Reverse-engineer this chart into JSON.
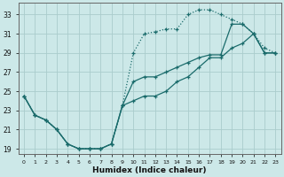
{
  "xlabel": "Humidex (Indice chaleur)",
  "background_color": "#cce8e8",
  "grid_color": "#aacccc",
  "line_color": "#1a6b6b",
  "xlim": [
    -0.5,
    23.5
  ],
  "ylim": [
    18.5,
    34.2
  ],
  "xticks": [
    0,
    1,
    2,
    3,
    4,
    5,
    6,
    7,
    8,
    9,
    10,
    11,
    12,
    13,
    14,
    15,
    16,
    17,
    18,
    19,
    20,
    21,
    22,
    23
  ],
  "yticks": [
    19,
    21,
    23,
    25,
    27,
    29,
    31,
    33
  ],
  "line1_x": [
    0,
    1,
    2,
    3,
    4,
    5,
    6,
    7,
    8,
    9,
    10,
    11,
    12,
    13,
    14,
    15,
    16,
    17,
    18,
    19,
    20,
    21,
    22,
    23
  ],
  "line1_y": [
    24.5,
    22.5,
    22.0,
    21.0,
    19.5,
    19.0,
    19.0,
    19.0,
    19.5,
    23.5,
    29.0,
    31.0,
    31.2,
    31.5,
    31.5,
    33.0,
    33.5,
    33.5,
    33.0,
    32.5,
    32.0,
    31.0,
    29.5,
    29.0
  ],
  "line2_x": [
    0,
    1,
    2,
    3,
    4,
    5,
    6,
    7,
    8,
    9,
    10,
    11,
    12,
    13,
    14,
    15,
    16,
    17,
    18,
    19,
    20,
    21,
    22,
    23
  ],
  "line2_y": [
    24.5,
    22.5,
    22.0,
    21.0,
    19.5,
    19.0,
    19.0,
    19.0,
    19.5,
    23.5,
    26.0,
    26.5,
    26.5,
    27.0,
    27.5,
    28.0,
    28.5,
    28.8,
    28.8,
    32.0,
    32.0,
    31.0,
    29.0,
    29.0
  ],
  "line3_x": [
    0,
    1,
    2,
    3,
    4,
    5,
    6,
    7,
    8,
    9,
    10,
    11,
    12,
    13,
    14,
    15,
    16,
    17,
    18,
    19,
    20,
    21,
    22,
    23
  ],
  "line3_y": [
    24.5,
    22.5,
    22.0,
    21.0,
    19.5,
    19.0,
    19.0,
    19.0,
    19.5,
    23.5,
    24.0,
    24.5,
    24.5,
    25.0,
    26.0,
    26.5,
    27.5,
    28.5,
    28.5,
    29.5,
    30.0,
    31.0,
    29.0,
    29.0
  ]
}
